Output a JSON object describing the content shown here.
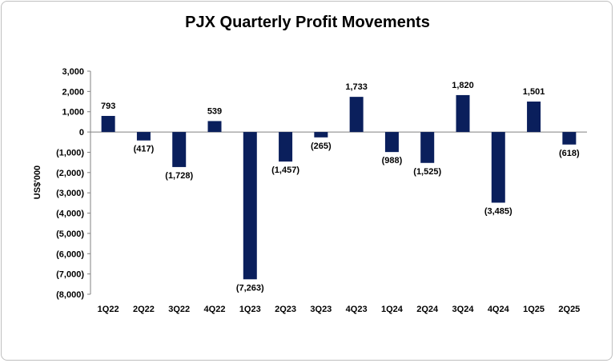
{
  "chart_data": {
    "type": "bar",
    "title": "PJX Quarterly Profit Movements",
    "xlabel": "",
    "ylabel": "US$'000",
    "ylim": [
      -8000,
      3000
    ],
    "ytick_step": 1000,
    "ytick_labels": [
      "3,000",
      "2,000",
      "1,000",
      "0",
      "(1,000)",
      "(2,000)",
      "(3,000)",
      "(4,000)",
      "(5,000)",
      "(6,000)",
      "(7,000)",
      "(8,000)"
    ],
    "categories": [
      "1Q22",
      "2Q22",
      "3Q22",
      "4Q22",
      "1Q23",
      "2Q23",
      "3Q23",
      "4Q23",
      "1Q24",
      "2Q24",
      "3Q24",
      "4Q24",
      "1Q25",
      "2Q25"
    ],
    "values": [
      793,
      -417,
      -1728,
      539,
      -7263,
      -1457,
      -265,
      1733,
      -988,
      -1525,
      1820,
      -3485,
      1501,
      -618
    ],
    "data_labels": [
      "793",
      "(417)",
      "(1,728)",
      "539",
      "(7,263)",
      "(1,457)",
      "(265)",
      "1,733",
      "(988)",
      "(1,525)",
      "1,820",
      "(3,485)",
      "1,501",
      "(618)"
    ],
    "bar_color": "#0a1f5c",
    "grid": false,
    "legend": "none"
  }
}
